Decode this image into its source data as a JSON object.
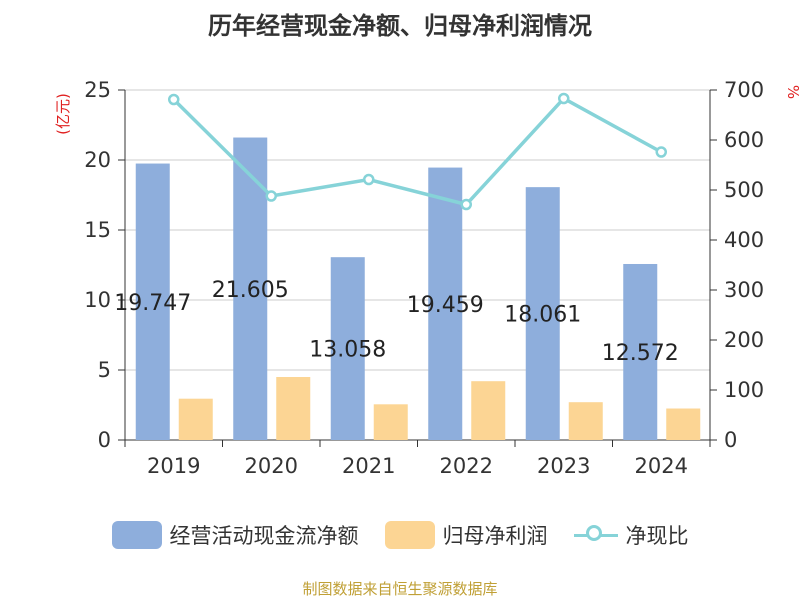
{
  "title": "历年经营现金净额、归母净利润情况",
  "footer": "制图数据来自恒生聚源数据库",
  "colors": {
    "operating_cash": "#8eaedc",
    "net_profit": "#fcd594",
    "ratio_line": "#86d3d8",
    "axis_unit": "#e02020",
    "footer": "#c0a036"
  },
  "chart_data": {
    "type": "bar",
    "categories": [
      "2019",
      "2020",
      "2021",
      "2022",
      "2023",
      "2024"
    ],
    "y_left": {
      "unit": "(亿元)",
      "range": [
        0,
        25
      ],
      "ticks": [
        "0",
        "5",
        "10",
        "15",
        "20",
        "25"
      ]
    },
    "y_right": {
      "unit": "%",
      "range": [
        0,
        700
      ],
      "ticks": [
        "0",
        "100",
        "200",
        "300",
        "400",
        "500",
        "600",
        "700"
      ]
    },
    "grid": true,
    "legend_position": "bottom",
    "series": [
      {
        "name": "经营活动现金流净额",
        "type": "bar",
        "axis": "left",
        "values": [
          19.747,
          21.605,
          13.058,
          19.459,
          18.061,
          12.572
        ],
        "labels": [
          "19.747",
          "21.605",
          "13.058",
          "19.459",
          "18.061",
          "12.572"
        ]
      },
      {
        "name": "归母净利润",
        "type": "bar",
        "axis": "left",
        "values": [
          2.95,
          4.5,
          2.55,
          4.2,
          2.7,
          2.25
        ]
      },
      {
        "name": "净现比",
        "type": "line",
        "axis": "right",
        "values": [
          681,
          488,
          521,
          471,
          683,
          576
        ]
      }
    ]
  }
}
